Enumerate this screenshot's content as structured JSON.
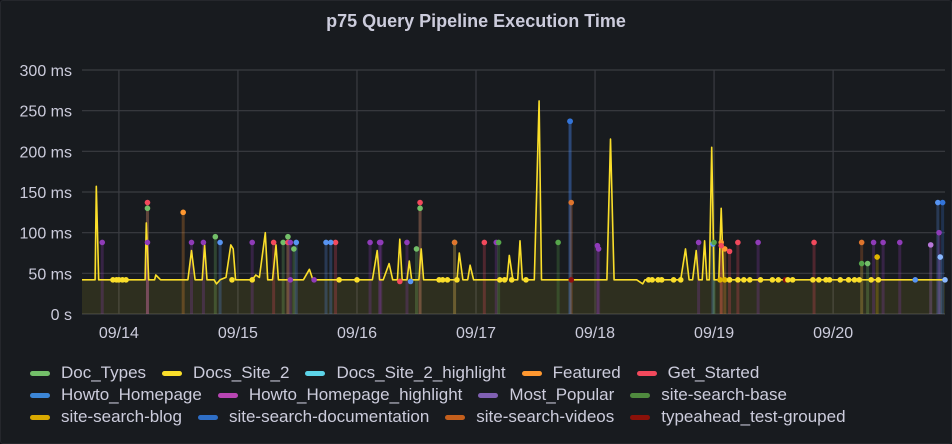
{
  "panel": {
    "title": "p75 Query Pipeline Execution Time"
  },
  "chart_data": {
    "type": "line",
    "title": "p75 Query Pipeline Execution Time",
    "xlabel": "",
    "ylabel": "",
    "x_unit": "days since 09/14 00:00",
    "xlim": [
      -0.31,
      6.94
    ],
    "ylim": [
      0,
      300
    ],
    "y_ticks": [
      {
        "value": 0,
        "label": "0 s"
      },
      {
        "value": 50,
        "label": "50 ms"
      },
      {
        "value": 100,
        "label": "100 ms"
      },
      {
        "value": 150,
        "label": "150 ms"
      },
      {
        "value": 200,
        "label": "200 ms"
      },
      {
        "value": 250,
        "label": "250 ms"
      },
      {
        "value": 300,
        "label": "300 ms"
      }
    ],
    "x_ticks": [
      {
        "value": 0,
        "label": "09/14"
      },
      {
        "value": 1,
        "label": "09/15"
      },
      {
        "value": 2,
        "label": "09/16"
      },
      {
        "value": 3,
        "label": "09/17"
      },
      {
        "value": 4,
        "label": "09/18"
      },
      {
        "value": 5,
        "label": "09/19"
      },
      {
        "value": 6,
        "label": "09/20"
      }
    ],
    "grid": true,
    "legend_position": "bottom",
    "series": [
      {
        "name": "Doc_Types",
        "color": "#73bf69",
        "points": [
          [
            0.24,
            130
          ],
          [
            0.81,
            95
          ],
          [
            1.38,
            88
          ],
          [
            1.42,
            95
          ],
          [
            1.47,
            80
          ],
          [
            2.5,
            80
          ],
          [
            2.53,
            130
          ],
          [
            2.82,
            88
          ],
          [
            6.29,
            62
          ]
        ]
      },
      {
        "name": "Docs_Site_2",
        "color": "#fade2a",
        "line": [
          [
            -0.31,
            42
          ],
          [
            -0.2,
            42
          ],
          [
            -0.19,
            157
          ],
          [
            -0.17,
            42
          ],
          [
            -0.05,
            42
          ],
          [
            -0.04,
            42
          ],
          [
            0.22,
            42
          ],
          [
            0.23,
            112
          ],
          [
            0.25,
            42
          ],
          [
            0.3,
            42
          ],
          [
            0.31,
            48
          ],
          [
            0.35,
            42
          ],
          [
            0.55,
            42
          ],
          [
            0.58,
            42
          ],
          [
            0.61,
            78
          ],
          [
            0.64,
            42
          ],
          [
            0.7,
            42
          ],
          [
            0.72,
            85
          ],
          [
            0.74,
            42
          ],
          [
            0.8,
            42
          ],
          [
            0.82,
            37
          ],
          [
            0.85,
            42
          ],
          [
            0.9,
            45
          ],
          [
            0.94,
            85
          ],
          [
            0.96,
            80
          ],
          [
            0.98,
            42
          ],
          [
            1.1,
            42
          ],
          [
            1.12,
            42
          ],
          [
            1.15,
            48
          ],
          [
            1.18,
            45
          ],
          [
            1.23,
            100
          ],
          [
            1.25,
            42
          ],
          [
            1.29,
            42
          ],
          [
            1.32,
            85
          ],
          [
            1.34,
            42
          ],
          [
            1.5,
            42
          ],
          [
            1.55,
            42
          ],
          [
            1.6,
            55
          ],
          [
            1.63,
            42
          ],
          [
            1.73,
            42
          ],
          [
            1.8,
            42
          ],
          [
            1.87,
            42
          ],
          [
            1.93,
            42
          ],
          [
            2.02,
            42
          ],
          [
            2.08,
            42
          ],
          [
            2.13,
            42
          ],
          [
            2.17,
            78
          ],
          [
            2.19,
            42
          ],
          [
            2.22,
            42
          ],
          [
            2.27,
            62
          ],
          [
            2.3,
            42
          ],
          [
            2.34,
            42
          ],
          [
            2.36,
            92
          ],
          [
            2.38,
            42
          ],
          [
            2.42,
            42
          ],
          [
            2.44,
            65
          ],
          [
            2.46,
            42
          ],
          [
            2.52,
            42
          ],
          [
            2.54,
            80
          ],
          [
            2.56,
            42
          ],
          [
            2.62,
            42
          ],
          [
            2.64,
            42
          ],
          [
            2.65,
            42
          ],
          [
            2.76,
            42
          ],
          [
            2.79,
            42
          ],
          [
            2.81,
            42
          ],
          [
            2.84,
            42
          ],
          [
            2.86,
            75
          ],
          [
            2.89,
            42
          ],
          [
            2.93,
            42
          ],
          [
            2.95,
            60
          ],
          [
            2.98,
            42
          ],
          [
            3.02,
            42
          ],
          [
            3.13,
            42
          ],
          [
            3.16,
            42
          ],
          [
            3.2,
            42
          ],
          [
            3.26,
            42
          ],
          [
            3.28,
            72
          ],
          [
            3.31,
            42
          ],
          [
            3.35,
            42
          ],
          [
            3.37,
            90
          ],
          [
            3.39,
            42
          ],
          [
            3.49,
            42
          ],
          [
            3.53,
            262
          ],
          [
            3.55,
            42
          ],
          [
            3.6,
            42
          ],
          [
            4.1,
            42
          ],
          [
            4.13,
            215
          ],
          [
            4.16,
            42
          ],
          [
            4.35,
            42
          ],
          [
            4.4,
            37
          ],
          [
            4.42,
            42
          ],
          [
            4.72,
            42
          ],
          [
            4.76,
            80
          ],
          [
            4.79,
            42
          ],
          [
            4.82,
            42
          ],
          [
            4.85,
            78
          ],
          [
            4.87,
            42
          ],
          [
            4.9,
            42
          ],
          [
            4.92,
            90
          ],
          [
            4.94,
            42
          ],
          [
            4.96,
            42
          ],
          [
            4.98,
            205
          ],
          [
            5.0,
            42
          ],
          [
            5.02,
            42
          ],
          [
            5.04,
            42
          ],
          [
            5.06,
            130
          ],
          [
            5.08,
            42
          ],
          [
            5.12,
            42
          ],
          [
            5.14,
            42
          ],
          [
            5.16,
            42
          ],
          [
            5.36,
            42
          ],
          [
            5.38,
            42
          ],
          [
            5.45,
            42
          ],
          [
            5.55,
            42
          ],
          [
            5.6,
            42
          ],
          [
            5.62,
            42
          ],
          [
            5.66,
            42
          ],
          [
            5.68,
            42
          ],
          [
            5.83,
            42
          ],
          [
            5.88,
            42
          ],
          [
            5.92,
            42
          ],
          [
            5.95,
            42
          ],
          [
            5.99,
            42
          ],
          [
            6.02,
            42
          ],
          [
            6.06,
            42
          ],
          [
            6.22,
            42
          ],
          [
            6.24,
            42
          ],
          [
            6.26,
            42
          ],
          [
            6.28,
            42
          ],
          [
            6.33,
            42
          ],
          [
            6.36,
            42
          ],
          [
            6.39,
            42
          ],
          [
            6.42,
            42
          ],
          [
            6.44,
            42
          ],
          [
            6.6,
            42
          ],
          [
            6.63,
            42
          ],
          [
            6.66,
            42
          ],
          [
            6.68,
            42
          ],
          [
            6.72,
            42
          ],
          [
            6.74,
            42
          ],
          [
            6.78,
            42
          ],
          [
            6.8,
            42
          ],
          [
            6.82,
            42
          ],
          [
            6.92,
            42
          ],
          [
            6.94,
            42
          ]
        ]
      },
      {
        "name": "Docs_Site_2_highlight",
        "color": "#8ab8ff",
        "points": [
          [
            6.9,
            70
          ],
          [
            6.94,
            42
          ]
        ]
      },
      {
        "name": "Featured",
        "color": "#ff9830",
        "points": [
          [
            0.54,
            125
          ],
          [
            5.06,
            88
          ],
          [
            5.09,
            80
          ]
        ]
      },
      {
        "name": "Get_Started",
        "color": "#f2495c",
        "points": [
          [
            0.24,
            137
          ],
          [
            1.3,
            88
          ],
          [
            1.42,
            88
          ],
          [
            1.82,
            88
          ],
          [
            2.36,
            40
          ],
          [
            2.53,
            137
          ],
          [
            3.07,
            88
          ],
          [
            5.06,
            84
          ],
          [
            5.13,
            77
          ],
          [
            5.2,
            88
          ],
          [
            5.84,
            88
          ]
        ]
      },
      {
        "name": "Howto_Homepage",
        "color": "#5794f2",
        "points": [
          [
            0.85,
            88
          ],
          [
            1.74,
            88
          ],
          [
            1.78,
            88
          ],
          [
            1.49,
            88
          ],
          [
            3.79,
            237
          ],
          [
            2.45,
            40
          ],
          [
            4.99,
            86
          ],
          [
            6.69,
            42
          ],
          [
            6.88,
            137
          ]
        ]
      },
      {
        "name": "Howto_Homepage_highlight",
        "color": "#b877d9",
        "points": [
          [
            6.82,
            85
          ]
        ]
      },
      {
        "name": "Most_Popular",
        "color": "#8f3bb8",
        "points": [
          [
            -0.14,
            88
          ],
          [
            0.24,
            88
          ],
          [
            0.61,
            88
          ],
          [
            0.71,
            88
          ],
          [
            1.12,
            88
          ],
          [
            1.44,
            88
          ],
          [
            1.64,
            42
          ],
          [
            1.44,
            42
          ],
          [
            2.11,
            88
          ],
          [
            2.19,
            88
          ],
          [
            2.2,
            88
          ],
          [
            2.42,
            88
          ],
          [
            3.17,
            88
          ],
          [
            4.02,
            84
          ],
          [
            4.03,
            80
          ],
          [
            4.87,
            88
          ],
          [
            5.37,
            88
          ],
          [
            6.34,
            88
          ],
          [
            6.42,
            88
          ],
          [
            6.56,
            88
          ],
          [
            6.89,
            100
          ]
        ]
      },
      {
        "name": "site-search-base",
        "color": "#56a64b",
        "points": [
          [
            3.19,
            88
          ],
          [
            3.69,
            88
          ],
          [
            5.0,
            88
          ],
          [
            6.24,
            62
          ]
        ]
      },
      {
        "name": "site-search-blog",
        "color": "#e0b400",
        "points": [
          [
            5.05,
            42
          ],
          [
            5.09,
            42
          ],
          [
            5.13,
            42
          ],
          [
            6.37,
            70
          ]
        ]
      },
      {
        "name": "site-search-documentation",
        "color": "#3274d9",
        "points": [
          [
            3.79,
            237
          ],
          [
            6.92,
            137
          ]
        ]
      },
      {
        "name": "site-search-videos",
        "color": "#e0752d",
        "points": [
          [
            2.82,
            88
          ],
          [
            3.8,
            137
          ],
          [
            6.24,
            88
          ]
        ]
      },
      {
        "name": "typeahead_test-grouped",
        "color": "#8f1010",
        "points": [
          [
            3.8,
            42
          ],
          [
            5.6,
            42
          ]
        ]
      }
    ]
  },
  "legend": {
    "rows": [
      [
        {
          "name": "Doc_Types",
          "color": "#73bf69"
        },
        {
          "name": "Docs_Site_2",
          "color": "#fade2a"
        },
        {
          "name": "Docs_Site_2_highlight",
          "color": "#5cd3e8"
        },
        {
          "name": "Featured",
          "color": "#ff9830"
        },
        {
          "name": "Get_Started",
          "color": "#f2495c"
        }
      ],
      [
        {
          "name": "Howto_Homepage",
          "color": "#3c86d6"
        },
        {
          "name": "Howto_Homepage_highlight",
          "color": "#b845b3"
        },
        {
          "name": "Most_Popular",
          "color": "#8060b3"
        },
        {
          "name": "site-search-base",
          "color": "#4f8a3e"
        }
      ],
      [
        {
          "name": "site-search-blog",
          "color": "#d9a900"
        },
        {
          "name": "site-search-documentation",
          "color": "#2e6ec6"
        },
        {
          "name": "site-search-videos",
          "color": "#c45f1c"
        },
        {
          "name": "typeahead_test-grouped",
          "color": "#8a1109"
        }
      ]
    ]
  }
}
